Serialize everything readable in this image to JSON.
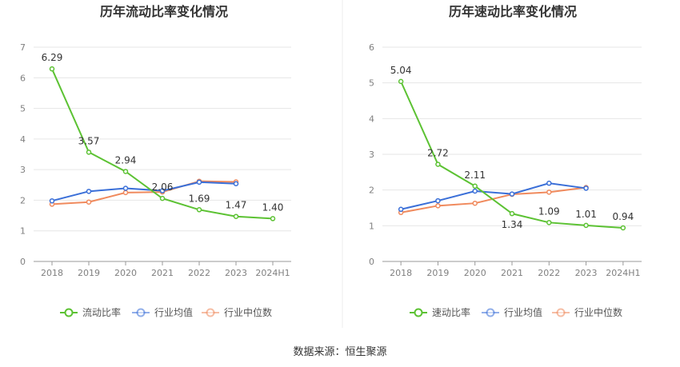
{
  "source_text": "数据来源：恒生聚源",
  "chart_data": [
    {
      "type": "line",
      "title": "历年流动比率变化情况",
      "categories": [
        "2018",
        "2019",
        "2020",
        "2021",
        "2022",
        "2023",
        "2024H1"
      ],
      "ylim": [
        0,
        7
      ],
      "yticks": [
        0,
        1,
        2,
        3,
        4,
        5,
        6,
        7
      ],
      "grid": true,
      "legend_position": "bottom",
      "series": [
        {
          "name": "流动比率",
          "color": "#5cc233",
          "values": [
            6.29,
            3.57,
            2.94,
            2.06,
            1.69,
            1.47,
            1.4
          ],
          "labels": [
            "6.29",
            "3.57",
            "2.94",
            "2.06",
            "1.69",
            "1.47",
            "1.40"
          ]
        },
        {
          "name": "行业均值",
          "color": "#3a6fd8",
          "values": [
            1.98,
            2.29,
            2.39,
            2.31,
            2.59,
            2.54,
            null
          ]
        },
        {
          "name": "行业中位数",
          "color": "#f08a5d",
          "values": [
            1.87,
            1.94,
            2.25,
            2.27,
            2.62,
            2.6,
            null
          ]
        }
      ]
    },
    {
      "type": "line",
      "title": "历年速动比率变化情况",
      "categories": [
        "2018",
        "2019",
        "2020",
        "2021",
        "2022",
        "2023",
        "2024H1"
      ],
      "ylim": [
        0,
        6
      ],
      "yticks": [
        0,
        1,
        2,
        3,
        4,
        5,
        6
      ],
      "grid": true,
      "legend_position": "bottom",
      "series": [
        {
          "name": "速动比率",
          "color": "#5cc233",
          "values": [
            5.04,
            2.72,
            2.11,
            1.34,
            1.09,
            1.01,
            0.94
          ],
          "labels": [
            "5.04",
            "2.72",
            "2.11",
            "1.34",
            "1.09",
            "1.01",
            "0.94"
          ]
        },
        {
          "name": "行业均值",
          "color": "#3a6fd8",
          "values": [
            1.46,
            1.7,
            1.97,
            1.89,
            2.19,
            2.05,
            null
          ]
        },
        {
          "name": "行业中位数",
          "color": "#f08a5d",
          "values": [
            1.37,
            1.56,
            1.63,
            1.88,
            1.94,
            2.07,
            null
          ]
        }
      ]
    }
  ]
}
